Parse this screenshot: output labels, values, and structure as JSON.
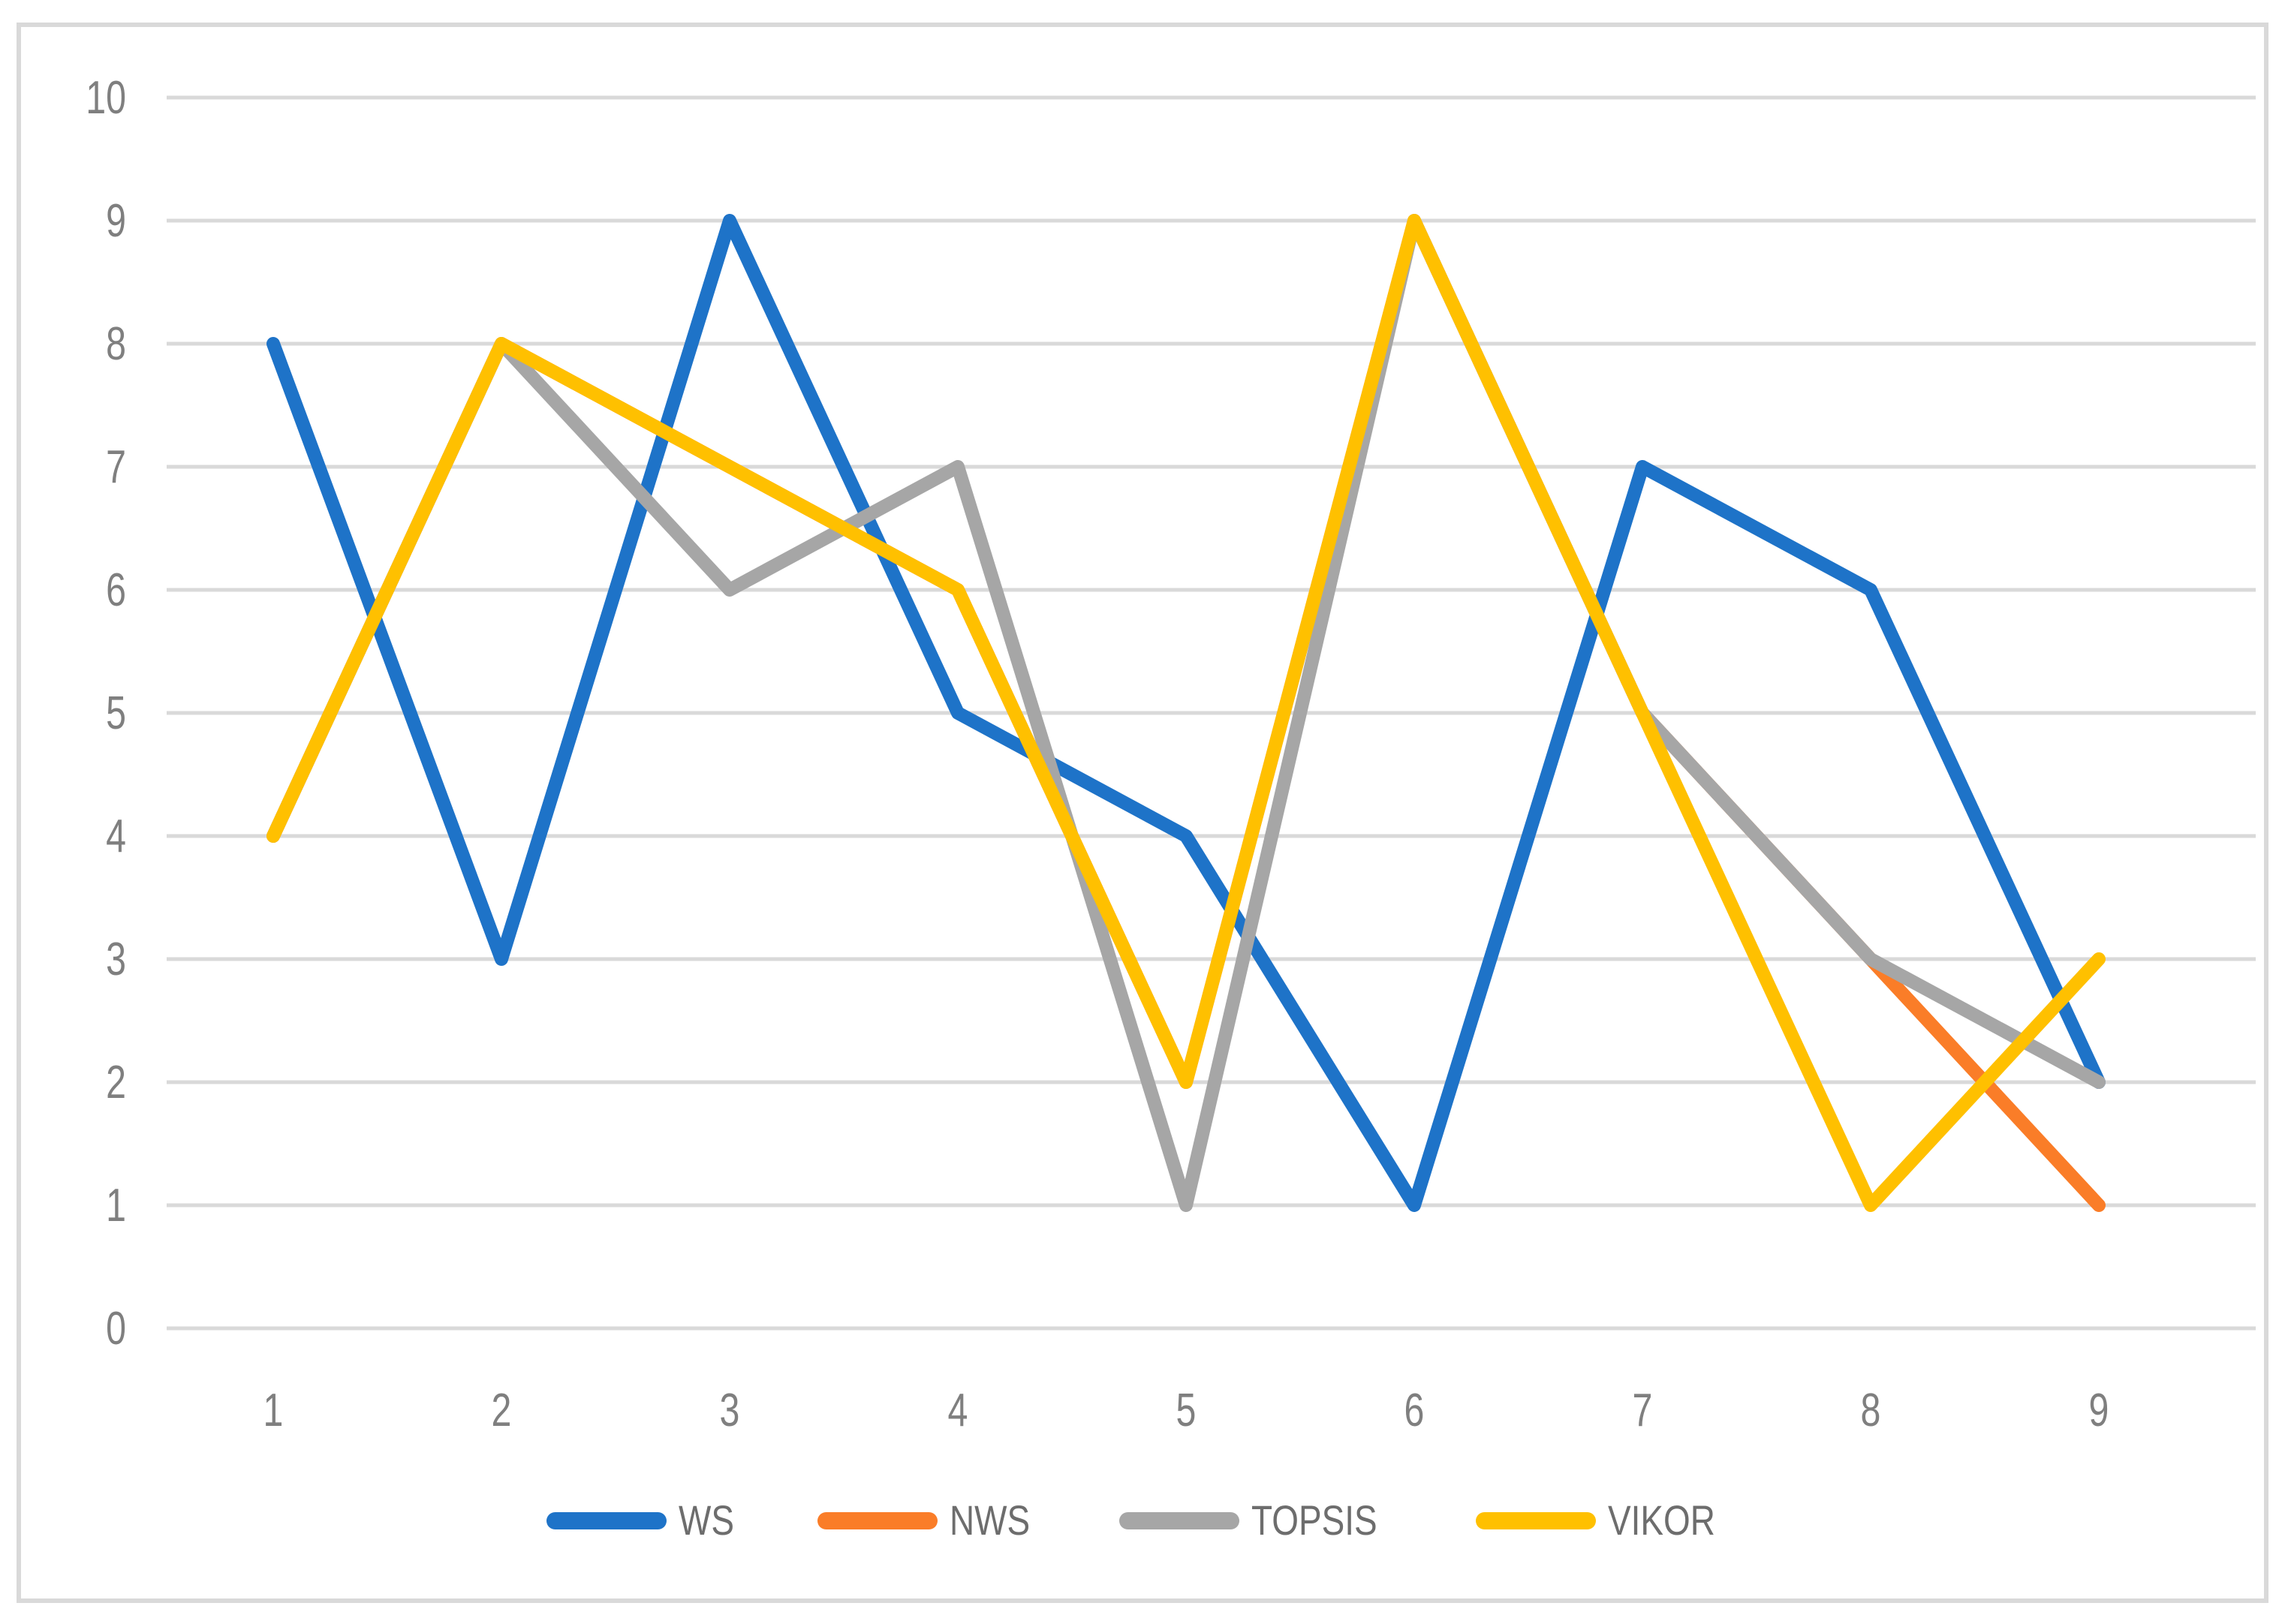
{
  "chart_data": {
    "type": "line",
    "title": "",
    "xlabel": "",
    "ylabel": "",
    "categories": [
      "1",
      "2",
      "3",
      "4",
      "5",
      "6",
      "7",
      "8",
      "9"
    ],
    "series": [
      {
        "name": "WS",
        "color": "#1E73C8",
        "values": [
          8,
          3,
          9,
          5,
          4,
          1,
          7,
          6,
          2
        ]
      },
      {
        "name": "NWS",
        "color": "#FA7D28",
        "values": [
          4,
          8,
          7,
          6,
          2,
          9,
          5,
          3,
          1
        ]
      },
      {
        "name": "TOPSIS",
        "color": "#A6A6A6",
        "values": [
          4,
          8,
          6,
          7,
          1,
          9,
          5,
          3,
          2
        ]
      },
      {
        "name": "VIKOR",
        "color": "#FFC000",
        "values": [
          4,
          8,
          7,
          6,
          2,
          9,
          5,
          1,
          3
        ]
      }
    ],
    "y_ticks": [
      0,
      1,
      2,
      3,
      4,
      5,
      6,
      7,
      8,
      9,
      10
    ],
    "ylim": [
      0,
      10
    ],
    "grid": true,
    "legend_position": "bottom",
    "style": {
      "line_width": 18,
      "gridline_color": "#D9D9D9",
      "border_color": "#D9D9D9",
      "tick_label_color": "#7F7F7F",
      "legend_label_color": "#6D6D6D",
      "background": "#FFFFFF"
    }
  }
}
